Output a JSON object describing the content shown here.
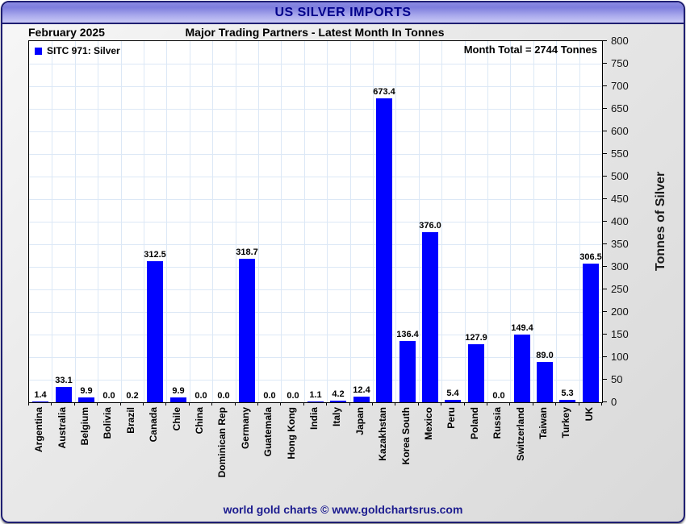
{
  "title": "US SILVER IMPORTS",
  "subtitle_left": "February 2025",
  "subtitle_center": "Major Trading Partners - Latest Month In Tonnes",
  "annotation": "Month Total = 2744 Tonnes",
  "legend_label": "SITC 971: Silver",
  "footer": "world gold charts © www.goldchartsrus.com",
  "colors": {
    "bar": "#0000ff",
    "grid": "#dce8f6",
    "title_navy": "#00008b",
    "footer_navy": "#1c1c8f",
    "frame_border": "#1f1f72"
  },
  "chart_data": {
    "type": "bar",
    "title": "US SILVER IMPORTS",
    "subtitle": "Major Trading Partners - Latest Month In Tonnes",
    "period": "February 2025",
    "legend": [
      "SITC 971: Silver"
    ],
    "annotation": "Month Total = 2744 Tonnes",
    "categories": [
      "Argentina",
      "Australia",
      "Belgium",
      "Bolivia",
      "Brazil",
      "Canada",
      "Chile",
      "China",
      "Dominican Rep",
      "Germany",
      "Guatemala",
      "Hong Kong",
      "India",
      "Italy",
      "Japan",
      "Kazakhstan",
      "Korea South",
      "Mexico",
      "Peru",
      "Poland",
      "Russia",
      "Switzerland",
      "Taiwan",
      "Turkey",
      "UK"
    ],
    "values": [
      1.4,
      33.1,
      9.9,
      0.0,
      0.2,
      312.5,
      9.9,
      0.0,
      0.0,
      318.7,
      0.0,
      0.0,
      1.1,
      4.2,
      12.4,
      673.4,
      136.4,
      376.0,
      5.4,
      127.9,
      0.0,
      149.4,
      89.0,
      5.3,
      306.5
    ],
    "xlabel": "",
    "ylabel": "Tonnes of Silver",
    "ylim": [
      0,
      800
    ],
    "ytick_step": 50,
    "grid": true,
    "legend_position": "top-left",
    "y_axis_side": "right"
  }
}
